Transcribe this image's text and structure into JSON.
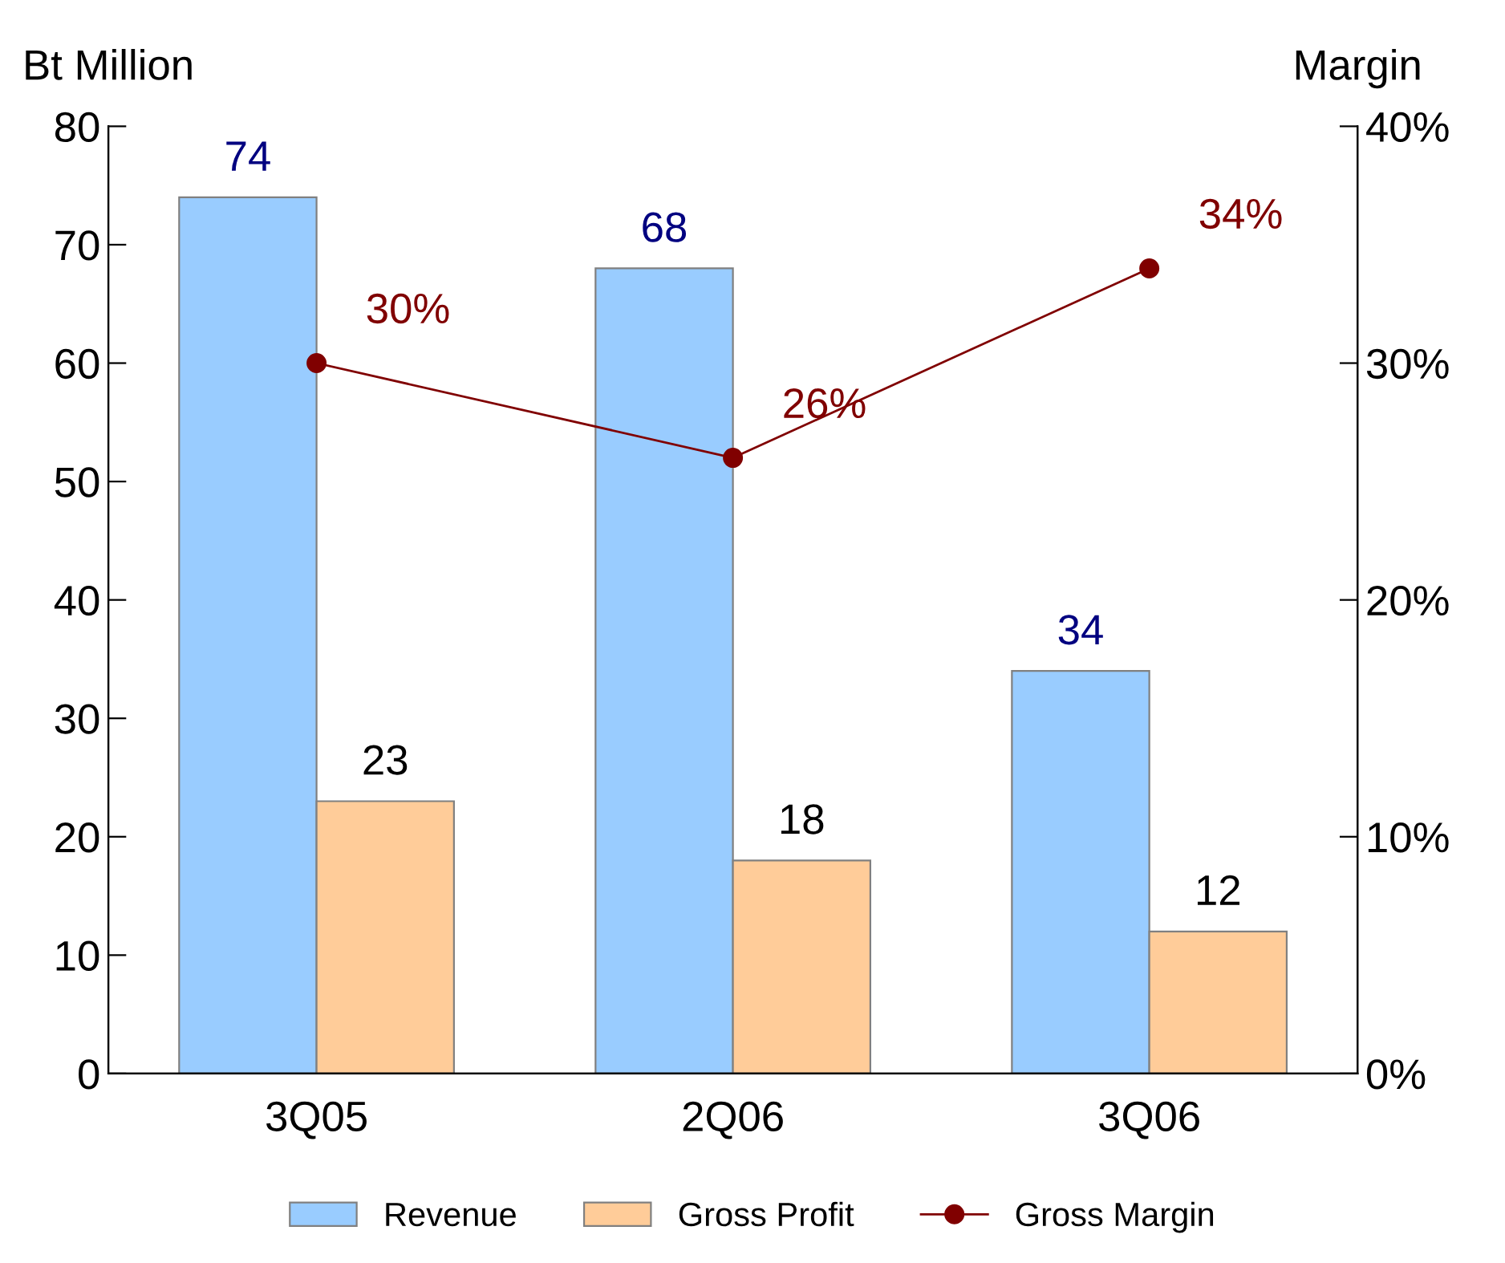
{
  "chart_data": {
    "type": "bar",
    "ylabel": "Bt Million",
    "y2label": "Margin",
    "categories": [
      "3Q05",
      "2Q06",
      "3Q06"
    ],
    "series": [
      {
        "name": "Revenue",
        "color": "#99ccff",
        "values": [
          74,
          68,
          34
        ]
      },
      {
        "name": "Gross Profit",
        "color": "#ffcc99",
        "values": [
          23,
          18,
          12
        ]
      },
      {
        "name": "Gross Margin",
        "type": "line",
        "axis": "y2",
        "color": "#800000",
        "values": [
          30,
          26,
          34
        ],
        "value_labels": [
          "30%",
          "26%",
          "34%"
        ]
      }
    ],
    "ylim": [
      0,
      80
    ],
    "yticks": [
      0,
      10,
      20,
      30,
      40,
      50,
      60,
      70,
      80
    ],
    "y2lim": [
      0,
      40
    ],
    "y2ticks": [
      {
        "value": 0,
        "label": "0%"
      },
      {
        "value": 10,
        "label": "10%"
      },
      {
        "value": 20,
        "label": "20%"
      },
      {
        "value": 30,
        "label": "30%"
      },
      {
        "value": 40,
        "label": "40%"
      }
    ],
    "data_labels": true,
    "marker": "circle",
    "legend": "bottom",
    "grid": false
  }
}
